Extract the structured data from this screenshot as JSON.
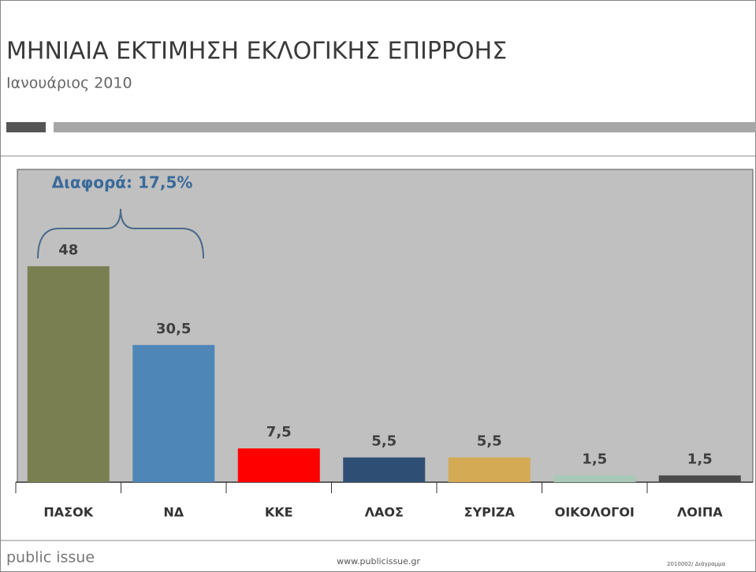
{
  "chart_data": {
    "type": "bar",
    "title": "ΜΗΝΙΑΙΑ ΕΚΤΙΜΗΣΗ ΕΚΛΟΓΙΚΗΣ ΕΠΙΡΡΟΗΣ",
    "subtitle": "Ιανουάριος 2010",
    "annotation": "Διαφορά: 17,5%",
    "categories": [
      "ΠΑΣΟΚ",
      "ΝΔ",
      "ΚΚΕ",
      "ΛΑΟΣ",
      "ΣΥΡΙΖΑ",
      "ΟΙΚΟΛΟΓΟΙ",
      "ΛΟΙΠΑ"
    ],
    "values": [
      48,
      30.5,
      7.5,
      5.5,
      5.5,
      1.5,
      1.5
    ],
    "value_labels": [
      "48",
      "30,5",
      "7,5",
      "5,5",
      "5,5",
      "1,5",
      "1,5"
    ],
    "colors": [
      "#7a7f52",
      "#4f86b8",
      "#ff0000",
      "#2e4f73",
      "#d4aa55",
      "#a8c8b8",
      "#4a4a4a"
    ],
    "footer": {
      "brand": "public issue",
      "url": "www.publicissue.gr",
      "code": "2010002/ Διάγραμμα"
    }
  }
}
